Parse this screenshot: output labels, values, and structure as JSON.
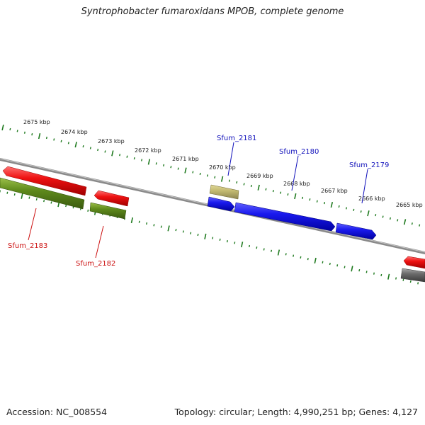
{
  "title": "Syntrophobacter fumaroxidans MPOB, complete genome",
  "footer": {
    "accession_label": "Accession:",
    "accession": "NC_008554",
    "topology_label": "Topology:",
    "topology": "circular",
    "length_label": "Length:",
    "length": "4,990,251 bp",
    "genes_label": "Genes:",
    "genes": "4,127"
  },
  "kbp_labels": [
    "2675 kbp",
    "2674 kbp",
    "2673 kbp",
    "2672 kbp",
    "2671 kbp",
    "2670 kbp",
    "2669 kbp",
    "2668 kbp",
    "2667 kbp",
    "2666 kbp",
    "2665 kbp"
  ],
  "genes_labeled": [
    {
      "name": "Sfum_2183",
      "strand": "forward"
    },
    {
      "name": "Sfum_2182",
      "strand": "forward"
    },
    {
      "name": "Sfum_2181",
      "strand": "reverse"
    },
    {
      "name": "Sfum_2180",
      "strand": "reverse"
    },
    {
      "name": "Sfum_2179",
      "strand": "reverse"
    }
  ],
  "colors": {
    "forward_gene": "#ee1111",
    "forward_cds": "#5f8a1c",
    "reverse_gene": "#1a1aee",
    "reverse_cds": "#c4bb72",
    "backbone": "#888888",
    "ticks": "#1f7a1f",
    "forward_label": "#cc1111",
    "reverse_label": "#1111bb"
  }
}
